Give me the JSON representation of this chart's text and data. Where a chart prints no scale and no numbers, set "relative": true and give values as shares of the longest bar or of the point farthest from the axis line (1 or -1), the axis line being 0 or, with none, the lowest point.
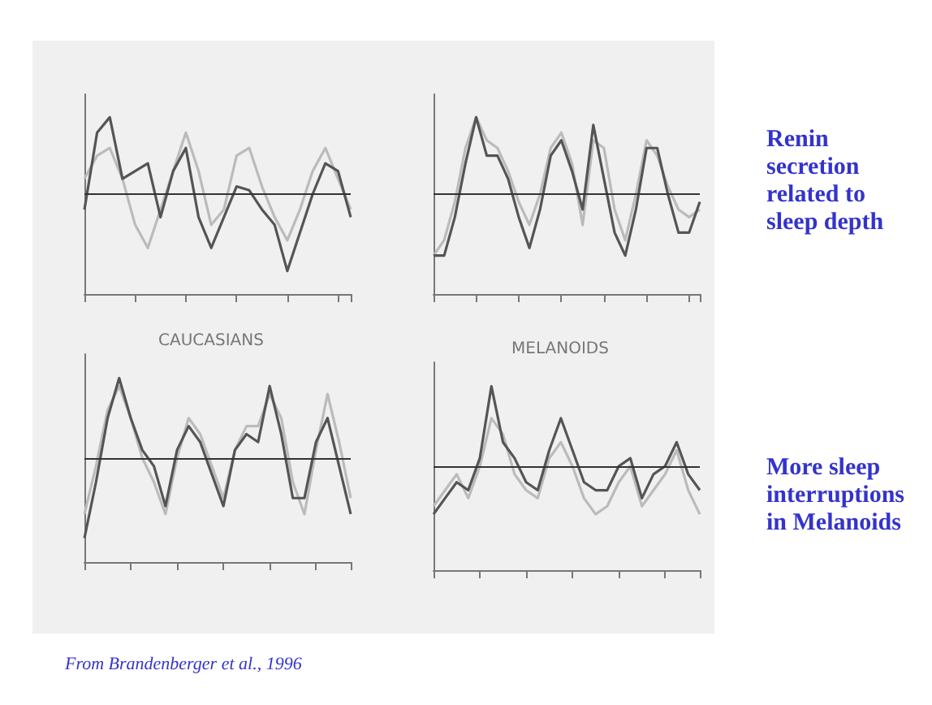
{
  "chart_data": [
    {
      "type": "line",
      "relative": true,
      "categories": [
        null,
        null,
        null,
        null,
        null,
        null,
        null,
        null,
        null,
        null,
        null,
        null,
        null,
        null,
        null,
        null,
        null,
        null,
        null,
        null,
        null,
        null
      ],
      "ref_lines": [
        {
          "axis": "y",
          "value": 0
        }
      ],
      "series": [
        {
          "color": "#bbbbbb",
          "values": [
            0.2,
            0.5,
            0.6,
            0.2,
            -0.4,
            -0.7,
            -0.2,
            0.3,
            0.8,
            0.3,
            -0.4,
            -0.2,
            0.5,
            0.6,
            0.1,
            -0.3,
            -0.6,
            -0.2,
            0.3,
            0.6,
            0.2,
            -0.2
          ]
        },
        {
          "color": "#555555",
          "values": [
            -0.2,
            0.8,
            1.0,
            0.2,
            0.3,
            0.4,
            -0.3,
            0.3,
            0.6,
            -0.3,
            -0.7,
            -0.3,
            0.1,
            0.05,
            -0.2,
            -0.4,
            -1.0,
            -0.5,
            0.0,
            0.4,
            0.3,
            -0.3
          ]
        }
      ]
    },
    {
      "type": "line",
      "relative": true,
      "categories": [
        null,
        null,
        null,
        null,
        null,
        null,
        null,
        null,
        null,
        null,
        null,
        null,
        null,
        null,
        null,
        null,
        null,
        null,
        null,
        null,
        null,
        null,
        null,
        null,
        null,
        null
      ],
      "ref_lines": [
        {
          "axis": "y",
          "value": 0
        }
      ],
      "series": [
        {
          "color": "#bbbbbb",
          "values": [
            -0.8,
            -0.6,
            -0.1,
            0.6,
            1.0,
            0.7,
            0.6,
            0.3,
            -0.1,
            -0.4,
            0.0,
            0.6,
            0.8,
            0.4,
            -0.4,
            0.7,
            0.6,
            -0.2,
            -0.6,
            0.0,
            0.7,
            0.5,
            0.1,
            -0.2,
            -0.3,
            -0.2
          ]
        },
        {
          "color": "#555555",
          "values": [
            -0.8,
            -0.8,
            -0.3,
            0.4,
            1.0,
            0.5,
            0.5,
            0.2,
            -0.3,
            -0.7,
            -0.2,
            0.5,
            0.7,
            0.3,
            -0.2,
            0.9,
            0.2,
            -0.5,
            -0.8,
            -0.2,
            0.6,
            0.6,
            0.0,
            -0.5,
            -0.5,
            -0.1
          ]
        }
      ]
    },
    {
      "type": "line",
      "title": "CAUCASIANS",
      "relative": true,
      "categories": [
        null,
        null,
        null,
        null,
        null,
        null,
        null,
        null,
        null,
        null,
        null,
        null,
        null,
        null,
        null,
        null,
        null,
        null,
        null,
        null,
        null,
        null,
        null,
        null
      ],
      "ref_lines": [
        {
          "axis": "y",
          "value": 0
        }
      ],
      "series": [
        {
          "color": "#bbbbbb",
          "values": [
            -0.7,
            -0.1,
            0.6,
            0.9,
            0.5,
            0.0,
            -0.3,
            -0.7,
            0.0,
            0.5,
            0.3,
            -0.1,
            -0.5,
            0.1,
            0.4,
            0.4,
            0.8,
            0.5,
            -0.3,
            -0.7,
            0.1,
            0.8,
            0.2,
            -0.5
          ]
        },
        {
          "color": "#555555",
          "values": [
            -1.0,
            -0.3,
            0.5,
            1.0,
            0.5,
            0.1,
            -0.1,
            -0.6,
            0.1,
            0.4,
            0.2,
            -0.2,
            -0.6,
            0.1,
            0.3,
            0.2,
            0.9,
            0.3,
            -0.5,
            -0.5,
            0.2,
            0.5,
            -0.1,
            -0.7
          ]
        }
      ]
    },
    {
      "type": "line",
      "title": "MELANOIDS",
      "relative": true,
      "categories": [
        null,
        null,
        null,
        null,
        null,
        null,
        null,
        null,
        null,
        null,
        null,
        null,
        null,
        null,
        null,
        null,
        null,
        null,
        null,
        null,
        null,
        null,
        null,
        null
      ],
      "ref_lines": [
        {
          "axis": "y",
          "value": 0
        }
      ],
      "series": [
        {
          "color": "#bbbbbb",
          "values": [
            -0.5,
            -0.3,
            -0.1,
            -0.4,
            0.0,
            0.6,
            0.4,
            -0.1,
            -0.3,
            -0.4,
            0.1,
            0.3,
            0.0,
            -0.4,
            -0.6,
            -0.5,
            -0.2,
            0.0,
            -0.5,
            -0.3,
            -0.1,
            0.2,
            -0.3,
            -0.6
          ]
        },
        {
          "color": "#555555",
          "values": [
            -0.6,
            -0.4,
            -0.2,
            -0.3,
            0.1,
            1.0,
            0.3,
            0.1,
            -0.2,
            -0.3,
            0.2,
            0.6,
            0.2,
            -0.2,
            -0.3,
            -0.3,
            0.0,
            0.1,
            -0.4,
            -0.1,
            0.0,
            0.3,
            -0.1,
            -0.3
          ]
        }
      ]
    },
    {
      "type": "other",
      "annotations": [
        "Renin secretion related to sleep depth",
        "More sleep interruptions in Melanoids",
        "From Brandenberger et al., 1996"
      ]
    }
  ]
}
